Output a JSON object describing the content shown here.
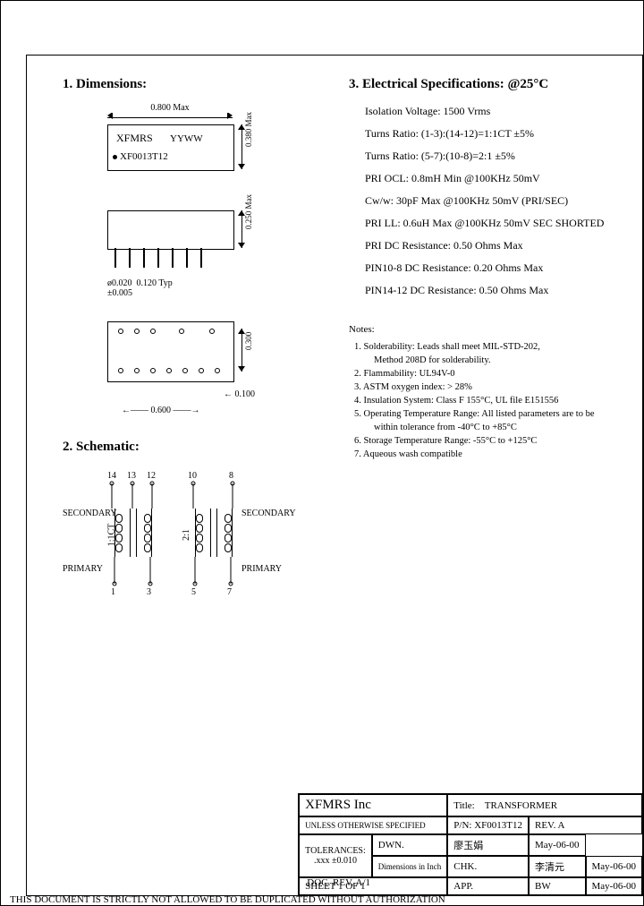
{
  "sections": {
    "dimensions_title": "1. Dimensions:",
    "schematic_title": "2. Schematic:",
    "specs_title": "3. Electrical  Specifications: @25°C"
  },
  "chip": {
    "brand": "XFMRS",
    "date": "YYWW",
    "part": "XF0013T12"
  },
  "dims": {
    "width": "0.800 Max",
    "height": "0.380 Max",
    "side_h": "0.250 Max",
    "pin_dia": "ø0.020",
    "pin_tol": "±0.005",
    "pin_pitch": "0.120 Typ",
    "bottom_row": "0.300",
    "bottom_edge": "0.100",
    "bottom_len": "0.600"
  },
  "specs": [
    "Isolation Voltage: 1500 Vrms",
    "Turns Ratio: (1-3):(14-12)=1:1CT ±5%",
    "Turns Ratio: (5-7):(10-8)=2:1 ±5%",
    "PRI OCL: 0.8mH Min @100KHz 50mV",
    "Cw/w: 30pF Max @100KHz 50mV (PRI/SEC)",
    "PRI LL: 0.6uH Max @100KHz 50mV SEC SHORTED",
    "PRI DC Resistance: 0.50 Ohms Max",
    "PIN10-8 DC Resistance: 0.20 Ohms Max",
    "PIN14-12 DC Resistance: 0.50 Ohms Max"
  ],
  "notes_title": "Notes:",
  "notes": [
    "1. Solderability: Leads shall meet MIL-STD-202,",
    "2. Flammability: UL94V-0",
    "3. ASTM oxygen index: > 28%",
    "4. Insulation System: Class F 155°C, UL file E151556",
    "5. Operating Temperature Range: All listed parameters are to be",
    "6. Storage Temperature Range: -55°C to +125°C",
    "7. Aqueous wash compatible"
  ],
  "notes_cont": {
    "0": "Method 208D for solderability.",
    "4": "within tolerance from -40°C to +85°C"
  },
  "schematic": {
    "secondary": "SECONDARY",
    "primary": "PRIMARY",
    "ratio1": "1:1CT",
    "ratio2": "2:1",
    "top_nums": [
      "14",
      "13",
      "12",
      "10",
      "8"
    ],
    "bot_nums": [
      "1",
      "3",
      "5",
      "7"
    ]
  },
  "titleblock": {
    "company": "XFMRS Inc",
    "title_label": "Title:",
    "title": "TRANSFORMER",
    "unless": "UNLESS OTHERWISE SPECIFIED",
    "tolerances": "TOLERANCES:",
    "tol_val": ".xxx ±0.010",
    "dims_in": "Dimensions in Inch",
    "pn_label": "P/N:",
    "pn": "XF0013T12",
    "rev_label": "REV.",
    "rev": "A",
    "dwn": "DWN.",
    "chk": "CHK.",
    "app": "APP.",
    "dwn_name": "廖玉娟",
    "chk_name": "李清元",
    "app_name": "BW",
    "date": "May-06-00",
    "sheet": "SHEET 1 OF 1"
  },
  "doc_rev": "DOC. REV. A/1",
  "disclaimer": "THIS DOCUMENT IS STRICTLY NOT ALLOWED TO BE DUPLICATED WITHOUT AUTHORIZATION"
}
